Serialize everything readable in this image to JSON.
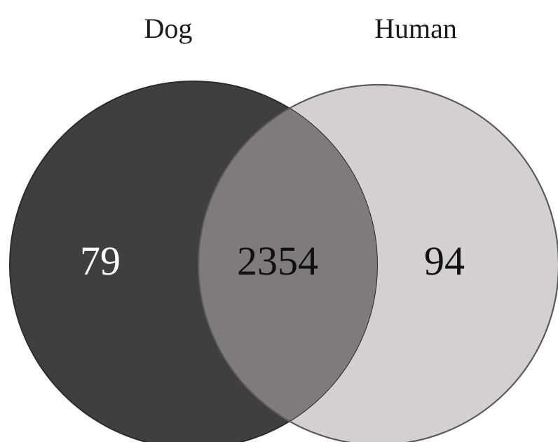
{
  "diagram": {
    "type": "venn",
    "sets": [
      {
        "name": "Dog",
        "color": "#3f3f3f"
      },
      {
        "name": "Human",
        "color": "#d4d0d0"
      }
    ],
    "intersection_color": "#7f7b7b",
    "regions": [
      {
        "region": "Dog only",
        "count": "79"
      },
      {
        "region": "Dog and Human",
        "count": "2354"
      },
      {
        "region": "Human only",
        "count": "94"
      }
    ]
  }
}
